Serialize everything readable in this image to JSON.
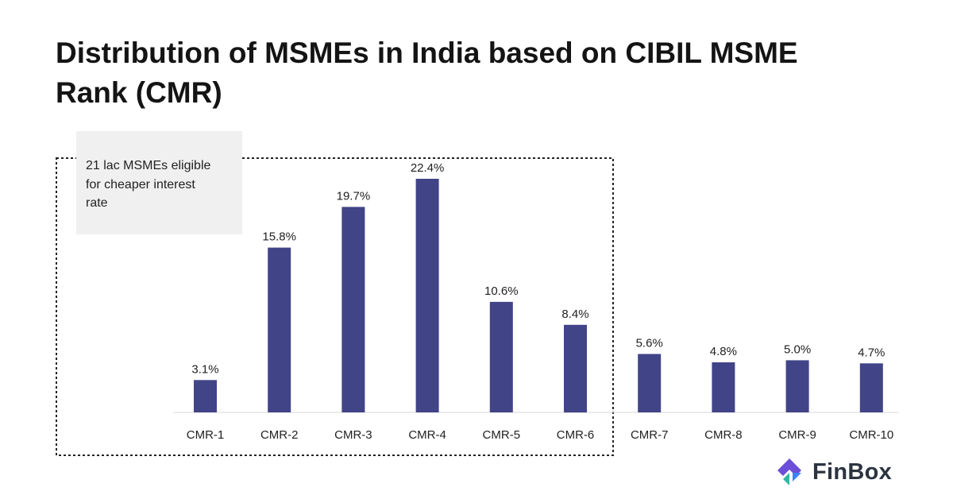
{
  "title": "Distribution of MSMEs in India based on CIBIL MSME Rank (CMR)",
  "annotation": {
    "lines": [
      "21 lac MSMEs eligible",
      "for cheaper interest",
      "rate"
    ]
  },
  "brand": {
    "name": "FinBox",
    "colors": [
      "#6c4fd8",
      "#2fb8a6",
      "#3b82f6"
    ]
  },
  "chart_data": {
    "type": "bar",
    "categories": [
      "CMR-1",
      "CMR-2",
      "CMR-3",
      "CMR-4",
      "CMR-5",
      "CMR-6",
      "CMR-7",
      "CMR-8",
      "CMR-9",
      "CMR-10"
    ],
    "values": [
      3.1,
      15.8,
      19.7,
      22.4,
      10.6,
      8.4,
      5.6,
      4.8,
      5.0,
      4.7
    ],
    "value_labels": [
      "3.1%",
      "15.8%",
      "19.7%",
      "22.4%",
      "10.6%",
      "8.4%",
      "5.6%",
      "4.8%",
      "5.0%",
      "4.7%"
    ],
    "title": "Distribution of MSMEs in India based on CIBIL MSME Rank (CMR)",
    "xlabel": "",
    "ylabel": "",
    "ylim": [
      0,
      22.4
    ],
    "grid": false,
    "bar_color": "#414487",
    "highlighted_categories": [
      "CMR-1",
      "CMR-2",
      "CMR-3",
      "CMR-4",
      "CMR-5",
      "CMR-6"
    ]
  }
}
